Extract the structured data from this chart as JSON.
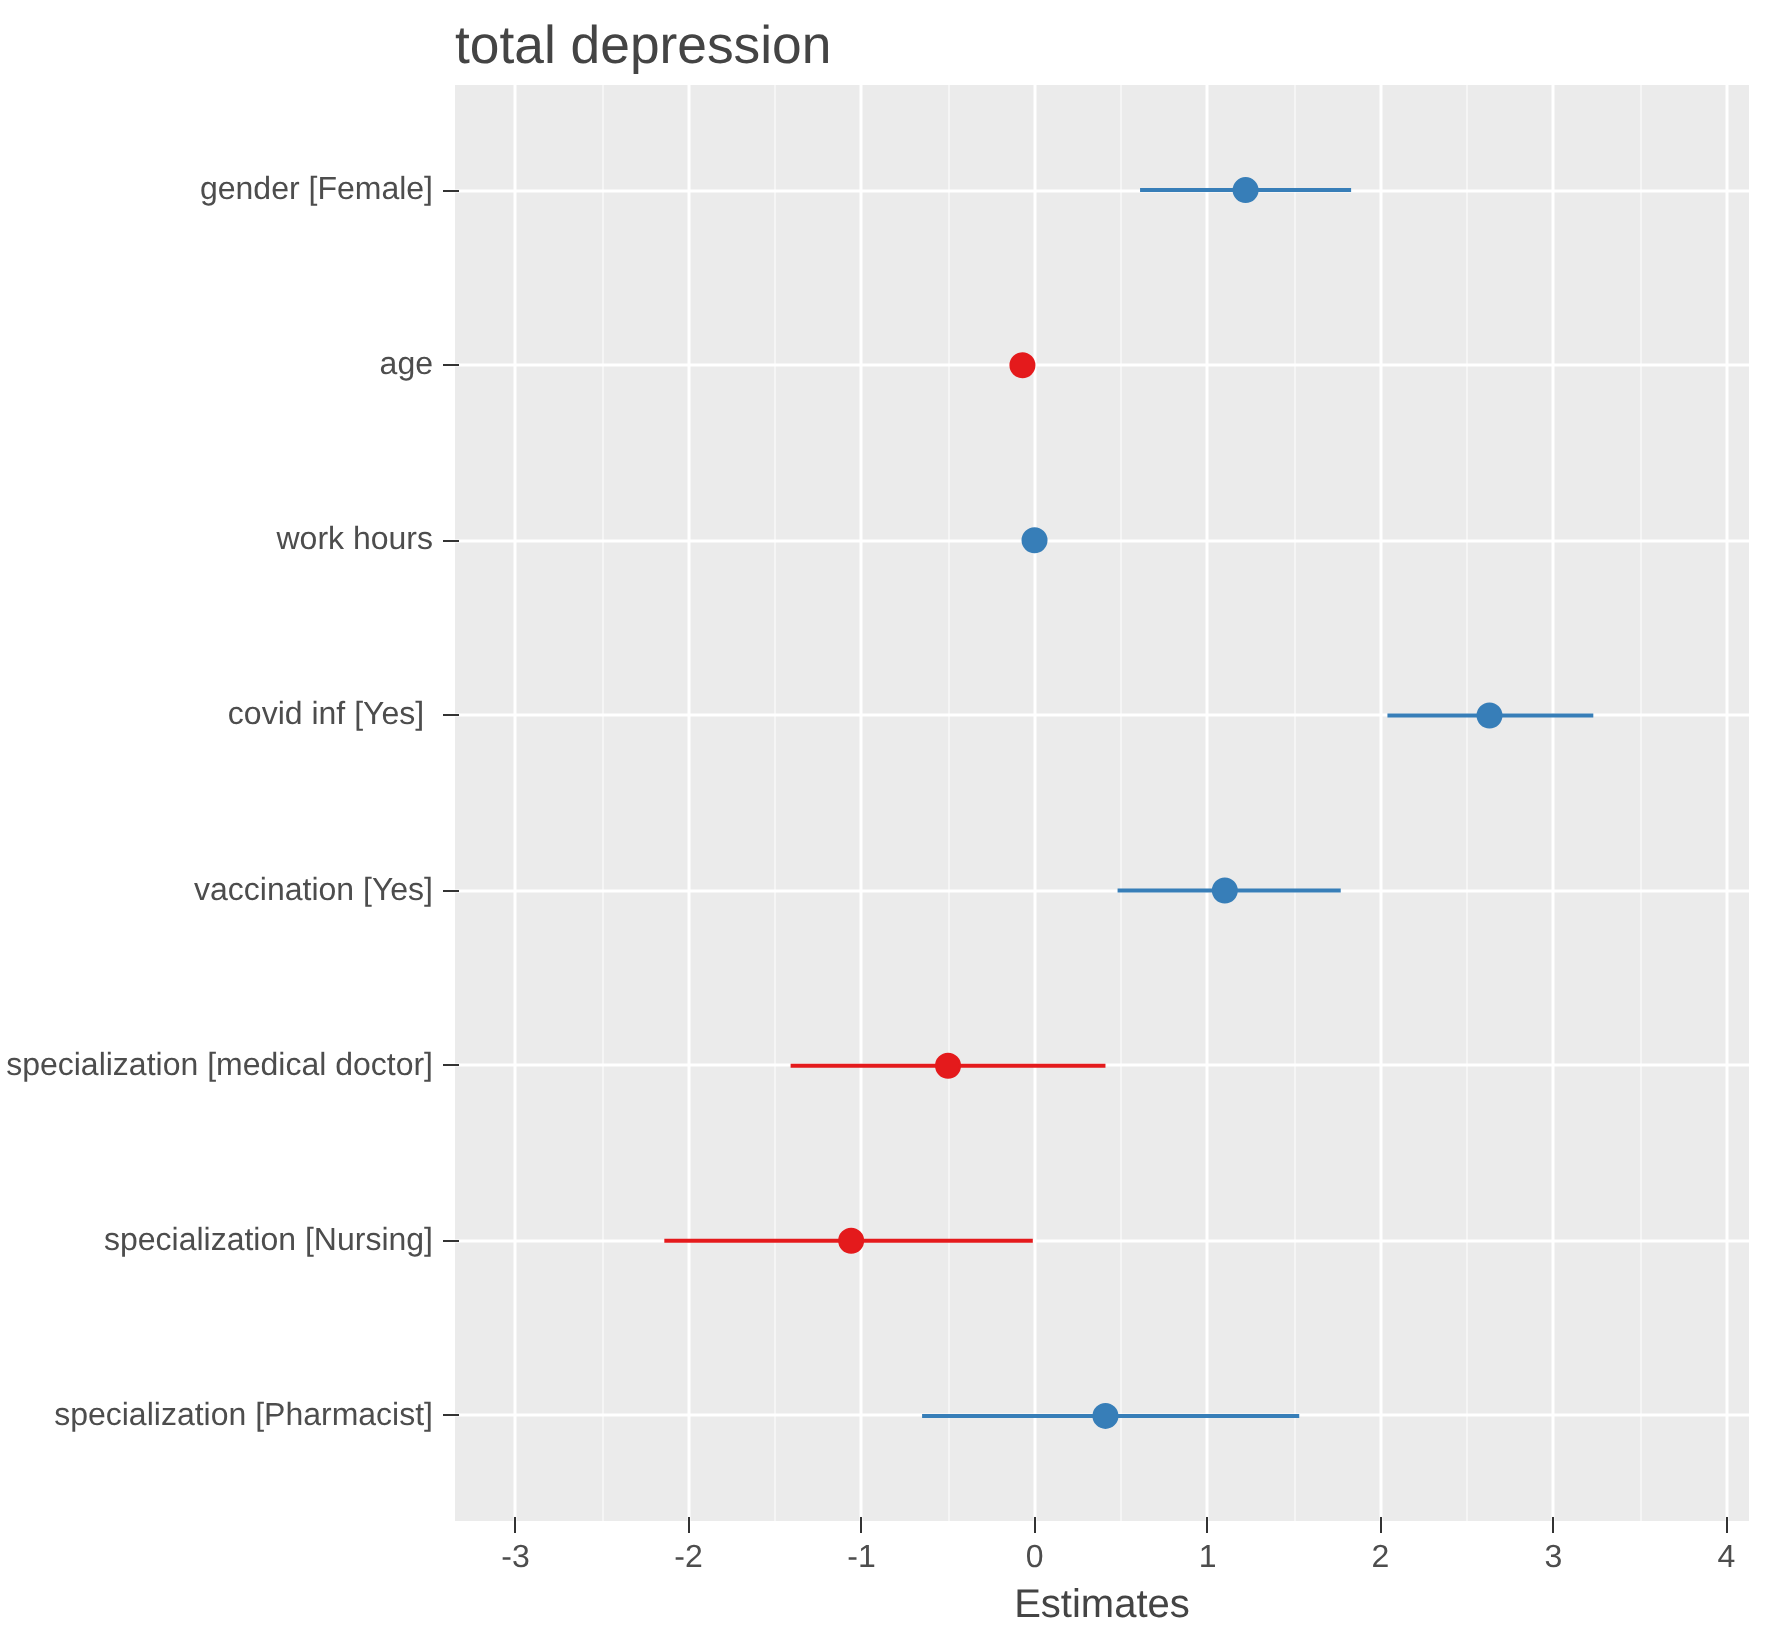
{
  "chart_data": {
    "type": "scatter",
    "orientation": "horizontal",
    "title": "total depression",
    "xlabel": "Estimates",
    "categories": [
      "gender [Female]",
      "age",
      "work hours",
      "covid inf  [Yes]",
      "vaccination [Yes]",
      "specialization [medical doctor]",
      "specialization [Nursing]",
      "specialization [Pharmacist]"
    ],
    "values": [
      1.22,
      -0.07,
      0.0,
      2.63,
      1.1,
      -0.5,
      -1.06,
      0.41
    ],
    "errors": [
      [
        0.61,
        1.83
      ],
      null,
      null,
      [
        2.04,
        3.23
      ],
      [
        0.48,
        1.77
      ],
      [
        -1.41,
        0.41
      ],
      [
        -2.14,
        -0.01
      ],
      [
        -0.65,
        1.53
      ]
    ],
    "colors": [
      "#377eb8",
      "#e41a1c",
      "#377eb8",
      "#377eb8",
      "#377eb8",
      "#e41a1c",
      "#e41a1c",
      "#377eb8"
    ],
    "xlim": [
      -3.35,
      4.13
    ],
    "xticks": [
      -3,
      -2,
      -1,
      0,
      1,
      2,
      3,
      4
    ],
    "grid": true,
    "marker": "circle"
  }
}
